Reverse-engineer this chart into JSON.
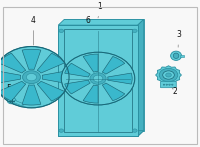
{
  "bg_color": "#f8f8f8",
  "border_color": "#bbbbbb",
  "part_color": "#60ccd8",
  "part_edge_color": "#2a8fa0",
  "part_dark": "#3aacbe",
  "dark_edge": "#1a6878",
  "shadow_color": "#45b0c0",
  "label_fontsize": 5.5,
  "label_color": "#111111",
  "fig_width": 2.0,
  "fig_height": 1.47
}
